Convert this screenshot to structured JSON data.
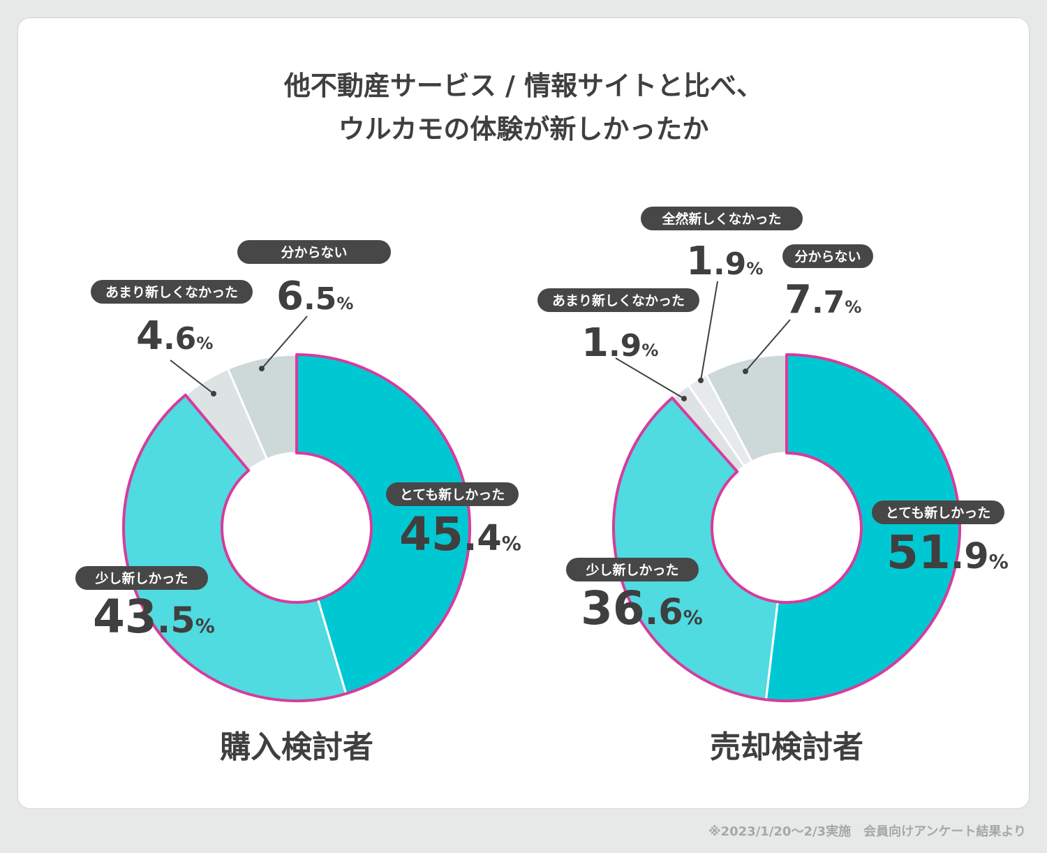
{
  "title": {
    "line1": "他不動産サービス / 情報サイトと比べ、",
    "line2": "ウルカモの体験が新しかったか"
  },
  "footnote": "※2023/1/20～2/3実施　会員向けアンケート結果より",
  "colors": {
    "background": "#e7e8e8",
    "card": "#ffffff",
    "very_new": "#00c8d3",
    "somewhat_new": "#4fdbe0",
    "not_very_new": "#dde2e2",
    "not_new_at_all": "#e6eaea",
    "dont_know": "#cdd8d8",
    "highlight_outline": "#d63c9c",
    "pill": "#474747",
    "text": "#3f3f3f"
  },
  "chart_data": [
    {
      "type": "pie",
      "variant": "donut",
      "group_label": "購入検討者",
      "slices": [
        {
          "label": "とても新しかった",
          "value": 45.4,
          "color_key": "very_new",
          "highlight": true
        },
        {
          "label": "少し新しかった",
          "value": 43.5,
          "color_key": "somewhat_new",
          "highlight": true
        },
        {
          "label": "あまり新しくなかった",
          "value": 4.6,
          "color_key": "not_very_new",
          "highlight": false
        },
        {
          "label": "分からない",
          "value": 6.5,
          "color_key": "dont_know",
          "highlight": false
        }
      ],
      "value_suffix": "%"
    },
    {
      "type": "pie",
      "variant": "donut",
      "group_label": "売却検討者",
      "slices": [
        {
          "label": "とても新しかった",
          "value": 51.9,
          "color_key": "very_new",
          "highlight": true
        },
        {
          "label": "少し新しかった",
          "value": 36.6,
          "color_key": "somewhat_new",
          "highlight": true
        },
        {
          "label": "あまり新しくなかった",
          "value": 1.9,
          "color_key": "not_very_new",
          "highlight": false
        },
        {
          "label": "全然新しくなかった",
          "value": 1.9,
          "color_key": "not_new_at_all",
          "highlight": false
        },
        {
          "label": "分からない",
          "value": 7.7,
          "color_key": "dont_know",
          "highlight": false
        }
      ],
      "value_suffix": "%"
    }
  ]
}
